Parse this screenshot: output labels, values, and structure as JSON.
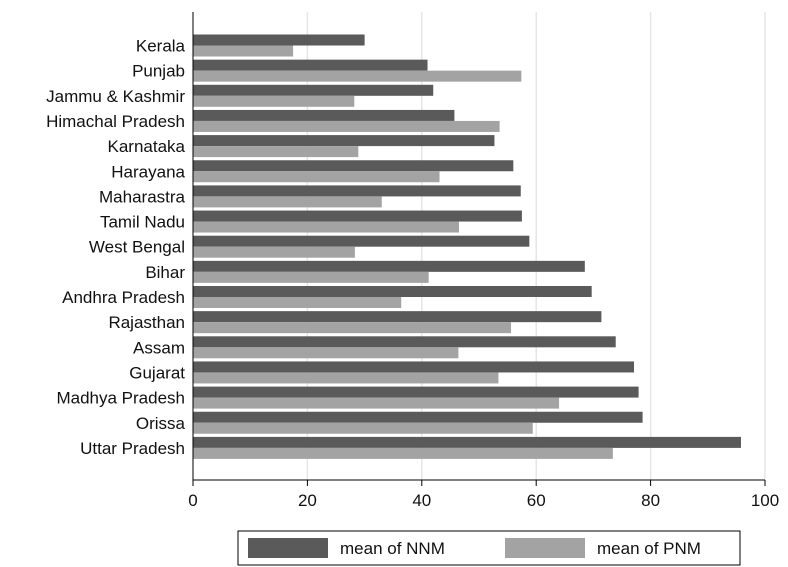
{
  "chart_data": {
    "type": "bar",
    "orientation": "horizontal",
    "categories": [
      "Kerala",
      "Punjab",
      "Jammu & Kashmir",
      "Himachal Pradesh",
      "Karnataka",
      "Harayana",
      "Maharastra",
      "Tamil Nadu",
      "West Bengal",
      "Bihar",
      "Andhra Pradesh",
      "Rajasthan",
      "Assam",
      "Gujarat",
      "Madhya Pradesh",
      "Orissa",
      "Uttar Pradesh"
    ],
    "series": [
      {
        "name": "mean of NNM",
        "color": "#5a5a5a",
        "values": [
          30,
          41,
          42,
          45.7,
          52.7,
          56,
          57.3,
          57.5,
          58.8,
          68.5,
          69.7,
          71.4,
          73.9,
          77.1,
          77.9,
          78.6,
          95.8
        ]
      },
      {
        "name": "mean of PNM",
        "color": "#a3a3a3",
        "values": [
          17.5,
          57.4,
          28.2,
          53.6,
          28.9,
          43.1,
          33,
          46.5,
          28.3,
          41.2,
          36.4,
          55.6,
          46.4,
          53.4,
          64,
          59.4,
          73.4
        ]
      }
    ],
    "xticks": [
      "0",
      "20",
      "40",
      "60",
      "80",
      "100"
    ],
    "xlim": [
      0,
      100
    ],
    "grid": true,
    "legend_position": "bottom"
  }
}
